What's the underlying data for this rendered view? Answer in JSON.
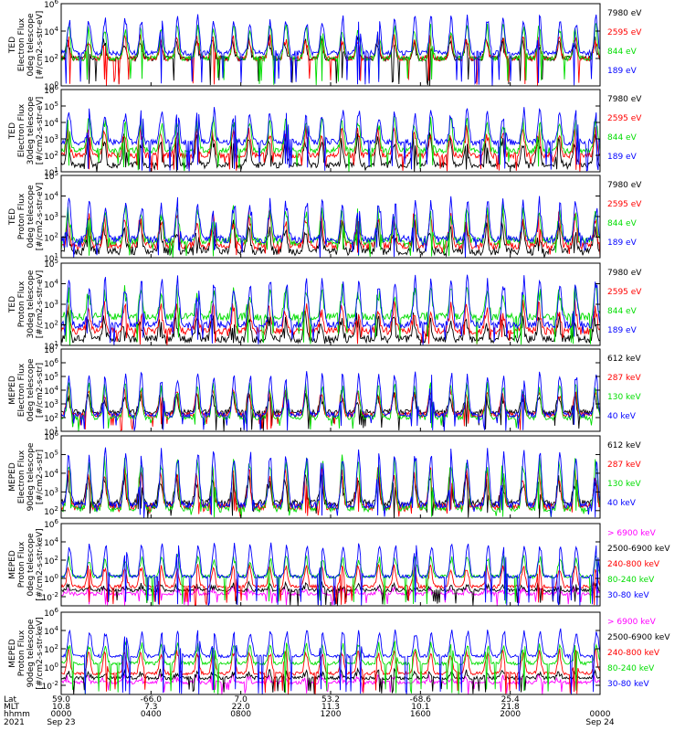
{
  "chart_data": [
    {
      "type": "line",
      "ylabel": [
        "TED",
        "Electron Flux",
        "0deg telescope",
        "[#/cm2-s-str-eV]"
      ],
      "yticks": [
        "10^0",
        "10^2",
        "10^4",
        "10^6"
      ],
      "ylim_exp": [
        0,
        6
      ],
      "series": [
        {
          "name": "7980 eV",
          "color": "#000000",
          "base": 2.0,
          "peak": 3.2
        },
        {
          "name": "2595 eV",
          "color": "#ff0000",
          "base": 2.0,
          "peak": 3.4
        },
        {
          "name": "844 eV",
          "color": "#00dd00",
          "base": 2.0,
          "peak": 4.2
        },
        {
          "name": "189 eV",
          "color": "#0000ff",
          "base": 2.4,
          "peak": 4.8
        }
      ]
    },
    {
      "type": "line",
      "ylabel": [
        "TED",
        "Electron Flux",
        "30deg telescope",
        "[#/cm2-s-str-eV]"
      ],
      "yticks": [
        "10^1",
        "10^2",
        "10^3",
        "10^4",
        "10^5",
        "10^6"
      ],
      "ylim_exp": [
        1,
        6
      ],
      "series": [
        {
          "name": "7980 eV",
          "color": "#000000",
          "base": 1.4,
          "peak": 3.0
        },
        {
          "name": "2595 eV",
          "color": "#ff0000",
          "base": 2.0,
          "peak": 3.4
        },
        {
          "name": "844 eV",
          "color": "#00dd00",
          "base": 2.3,
          "peak": 4.0
        },
        {
          "name": "189 eV",
          "color": "#0000ff",
          "base": 2.8,
          "peak": 4.6
        }
      ]
    },
    {
      "type": "line",
      "ylabel": [
        "TED",
        "Proton Flux",
        "0deg telescope",
        "[#/cm2-s-str-eV]"
      ],
      "yticks": [
        "10^1",
        "10^2",
        "10^3",
        "10^4",
        "10^5"
      ],
      "ylim_exp": [
        1,
        5
      ],
      "series": [
        {
          "name": "7980 eV",
          "color": "#000000",
          "base": 1.3,
          "peak": 2.5
        },
        {
          "name": "2595 eV",
          "color": "#ff0000",
          "base": 1.6,
          "peak": 2.9
        },
        {
          "name": "844 eV",
          "color": "#00dd00",
          "base": 1.8,
          "peak": 3.2
        },
        {
          "name": "189 eV",
          "color": "#0000ff",
          "base": 1.9,
          "peak": 3.6
        }
      ]
    },
    {
      "type": "line",
      "ylabel": [
        "TED",
        "Proton Flux",
        "30deg telescope",
        "[#/cm2-s-str-eV]"
      ],
      "yticks": [
        "10^1",
        "10^2",
        "10^3",
        "10^4",
        "10^5"
      ],
      "ylim_exp": [
        1,
        5
      ],
      "series": [
        {
          "name": "7980 eV",
          "color": "#000000",
          "base": 1.3,
          "peak": 2.3
        },
        {
          "name": "2595 eV",
          "color": "#ff0000",
          "base": 1.7,
          "peak": 2.8
        },
        {
          "name": "844 eV",
          "color": "#00dd00",
          "base": 2.4,
          "peak": 3.6
        },
        {
          "name": "189 eV",
          "color": "#0000ff",
          "base": 2.0,
          "peak": 4.0
        }
      ]
    },
    {
      "type": "line",
      "ylabel": [
        "MEPED",
        "Electron Flux",
        "0deg telescope",
        "[#/cm2-s-str]"
      ],
      "yticks": [
        "10^1",
        "10^2",
        "10^3",
        "10^4",
        "10^5",
        "10^6",
        "10^7"
      ],
      "ylim_exp": [
        1,
        7
      ],
      "series": [
        {
          "name": "612 keV",
          "color": "#000000",
          "base": 2.4,
          "peak": 3.5
        },
        {
          "name": "287 keV",
          "color": "#ff0000",
          "base": 2.2,
          "peak": 3.9
        },
        {
          "name": "130 keV",
          "color": "#00dd00",
          "base": 2.0,
          "peak": 4.2
        },
        {
          "name": "40 keV",
          "color": "#0000ff",
          "base": 2.2,
          "peak": 5.0
        }
      ]
    },
    {
      "type": "line",
      "ylabel": [
        "MEPED",
        "Electron Flux",
        "90deg telescope",
        "[#/cm2-s-str]"
      ],
      "yticks": [
        "10^2",
        "10^3",
        "10^4",
        "10^5",
        "10^6"
      ],
      "ylim_exp": [
        1.6,
        6
      ],
      "series": [
        {
          "name": "612 keV",
          "color": "#000000",
          "base": 2.4,
          "peak": 3.6
        },
        {
          "name": "287 keV",
          "color": "#ff0000",
          "base": 2.2,
          "peak": 4.0
        },
        {
          "name": "130 keV",
          "color": "#00dd00",
          "base": 2.1,
          "peak": 4.6
        },
        {
          "name": "40 keV",
          "color": "#0000ff",
          "base": 2.3,
          "peak": 5.0
        }
      ]
    },
    {
      "type": "line",
      "ylabel": [
        "MEPED",
        "Proton Flux",
        "0deg telescope",
        "[#/cm2-s-str-keV]"
      ],
      "yticks": [
        "10^-2",
        "10^0",
        "10^2",
        "10^4",
        "10^6"
      ],
      "ylim_exp": [
        -3,
        6
      ],
      "series": [
        {
          "name": "> 6900 keV",
          "color": "#ff00ff",
          "base": -1.7,
          "peak": -1.2
        },
        {
          "name": "2500-6900 keV",
          "color": "#000000",
          "base": -1.3,
          "peak": -0.8
        },
        {
          "name": "240-800 keV",
          "color": "#ff0000",
          "base": -0.9,
          "peak": 1.2
        },
        {
          "name": "80-240 keV",
          "color": "#00dd00",
          "base": 0.2,
          "peak": 2.2
        },
        {
          "name": "30-80 keV",
          "color": "#0000ff",
          "base": 0.2,
          "peak": 3.6
        }
      ]
    },
    {
      "type": "line",
      "ylabel": [
        "MEPED",
        "Proton Flux",
        "90deg telescope",
        "[#/cm2-s-str-keV]"
      ],
      "yticks": [
        "10^-2",
        "10^0",
        "10^2",
        "10^4",
        "10^6"
      ],
      "ylim_exp": [
        -3,
        6
      ],
      "series": [
        {
          "name": "> 6900 keV",
          "color": "#ff00ff",
          "base": -1.7,
          "peak": -1.2
        },
        {
          "name": "2500-6900 keV",
          "color": "#000000",
          "base": -1.2,
          "peak": -0.6
        },
        {
          "name": "240-800 keV",
          "color": "#ff0000",
          "base": -0.7,
          "peak": 1.6
        },
        {
          "name": "80-240 keV",
          "color": "#00dd00",
          "base": 0.4,
          "peak": 2.4
        },
        {
          "name": "30-80 keV",
          "color": "#0000ff",
          "base": 1.2,
          "peak": 3.8
        }
      ]
    }
  ],
  "time_axis": {
    "row_labels": [
      "Lat",
      "MLT",
      "hhmm",
      "2021"
    ],
    "columns": [
      {
        "lat": "59.0",
        "mlt": "10.8",
        "hhmm": "0000",
        "date": "Sep 23"
      },
      {
        "lat": "-66.0",
        "mlt": "7.3",
        "hhmm": "0400",
        "date": ""
      },
      {
        "lat": "7.0",
        "mlt": "22.0",
        "hhmm": "0800",
        "date": ""
      },
      {
        "lat": "53.2",
        "mlt": "11.3",
        "hhmm": "1200",
        "date": ""
      },
      {
        "lat": "-68.6",
        "mlt": "10.1",
        "hhmm": "1600",
        "date": ""
      },
      {
        "lat": "25.4",
        "mlt": "21.8",
        "hhmm": "2000",
        "date": ""
      },
      {
        "lat": "",
        "mlt": "",
        "hhmm": "0000",
        "date": "Sep 24"
      }
    ]
  }
}
